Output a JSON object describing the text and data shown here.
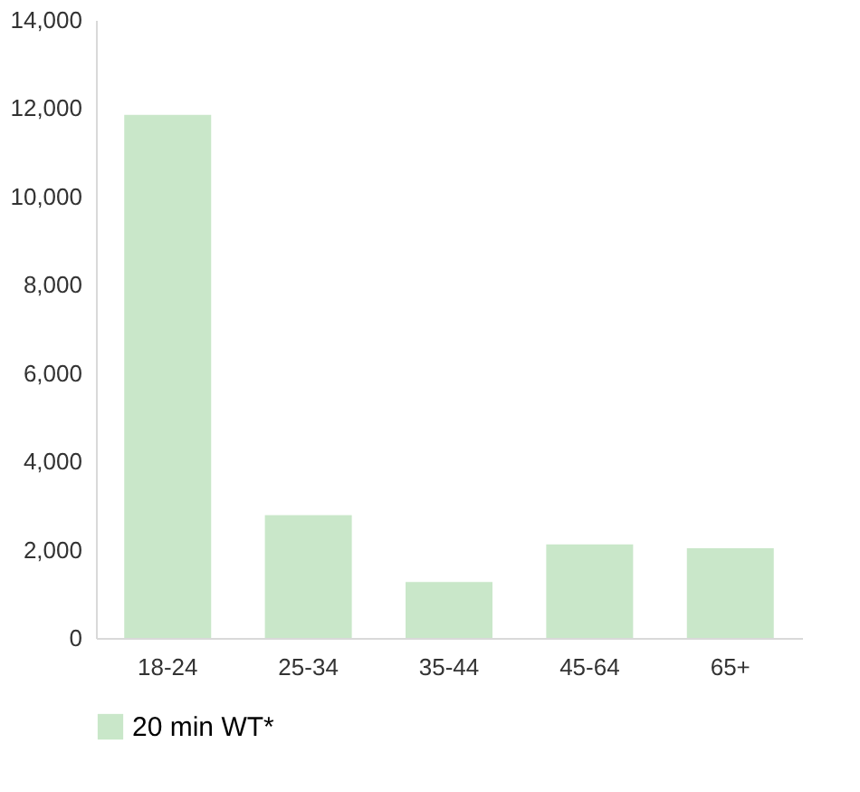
{
  "chart_data": {
    "type": "bar",
    "categories": [
      "18-24",
      "25-34",
      "35-44",
      "45-64",
      "65+"
    ],
    "series": [
      {
        "name": "20 min WT*",
        "color": "#c9e7c9",
        "values": [
          11850,
          2780,
          1270,
          2120,
          2030
        ]
      }
    ],
    "ylim": [
      0,
      14000
    ],
    "yticks": [
      0,
      {
        "value": 2000,
        "label": "2,000"
      },
      {
        "value": 4000,
        "label": "4,000"
      },
      {
        "value": 6000,
        "label": "6,000"
      },
      {
        "value": 8000,
        "label": "8,000"
      },
      {
        "value": 10000,
        "label": "10,000"
      },
      {
        "value": 12000,
        "label": "12,000"
      },
      {
        "value": 14000,
        "label": "14,000"
      }
    ],
    "grid": false,
    "legend": "bottom"
  }
}
